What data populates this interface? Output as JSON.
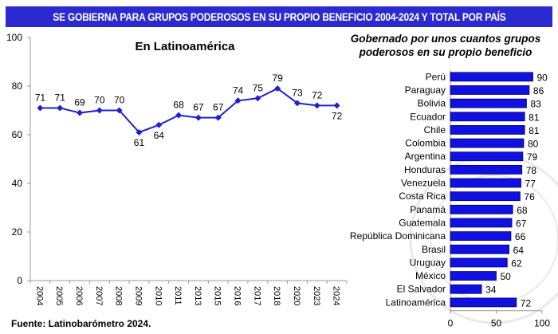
{
  "header": {
    "title": "SE GOBIERNA PARA GRUPOS PODEROSOS EN SU PROPIO BENEFICIO 2004-2024 Y TOTAL POR PAÍS"
  },
  "source": "Fuente: Latinobarómetro 2024.",
  "colors": {
    "accent": "#2a2ad0",
    "bar": "#1010e0",
    "line": "#2020d0"
  },
  "chart_data": [
    {
      "type": "line",
      "title": "En Latinoamérica",
      "categories": [
        "2004",
        "2005",
        "2006",
        "2007",
        "2008",
        "2009",
        "2010",
        "2011",
        "2013",
        "2015",
        "2016",
        "2017",
        "2018",
        "2020",
        "2023",
        "2024"
      ],
      "values": [
        71,
        71,
        69,
        70,
        70,
        61,
        64,
        68,
        67,
        67,
        74,
        75,
        79,
        73,
        72,
        72
      ],
      "ylim": [
        0,
        100
      ],
      "yticks": [
        "0",
        "20",
        "40",
        "60",
        "80",
        "100"
      ],
      "grid": false
    },
    {
      "type": "bar",
      "title": "Gobernado por unos cuantos grupos poderosos en su propio beneficio",
      "title_lines": [
        "Gobernado por unos cuantos grupos",
        "poderosos en su propio beneficio"
      ],
      "categories": [
        "Perú",
        "Paraguay",
        "Bolivia",
        "Ecuador",
        "Chile",
        "Colombia",
        "Argentina",
        "Honduras",
        "Venezuela",
        "Costa Rica",
        "Panamá",
        "Guatemala",
        "República Dominicana",
        "Brasil",
        "Uruguay",
        "México",
        "El Salvador",
        "Latinoamérica"
      ],
      "values": [
        90,
        86,
        83,
        81,
        81,
        80,
        79,
        78,
        77,
        76,
        68,
        67,
        66,
        64,
        62,
        50,
        34,
        72
      ],
      "xlim": [
        0,
        100
      ],
      "xticks": [
        "0",
        "50",
        "100"
      ]
    }
  ]
}
